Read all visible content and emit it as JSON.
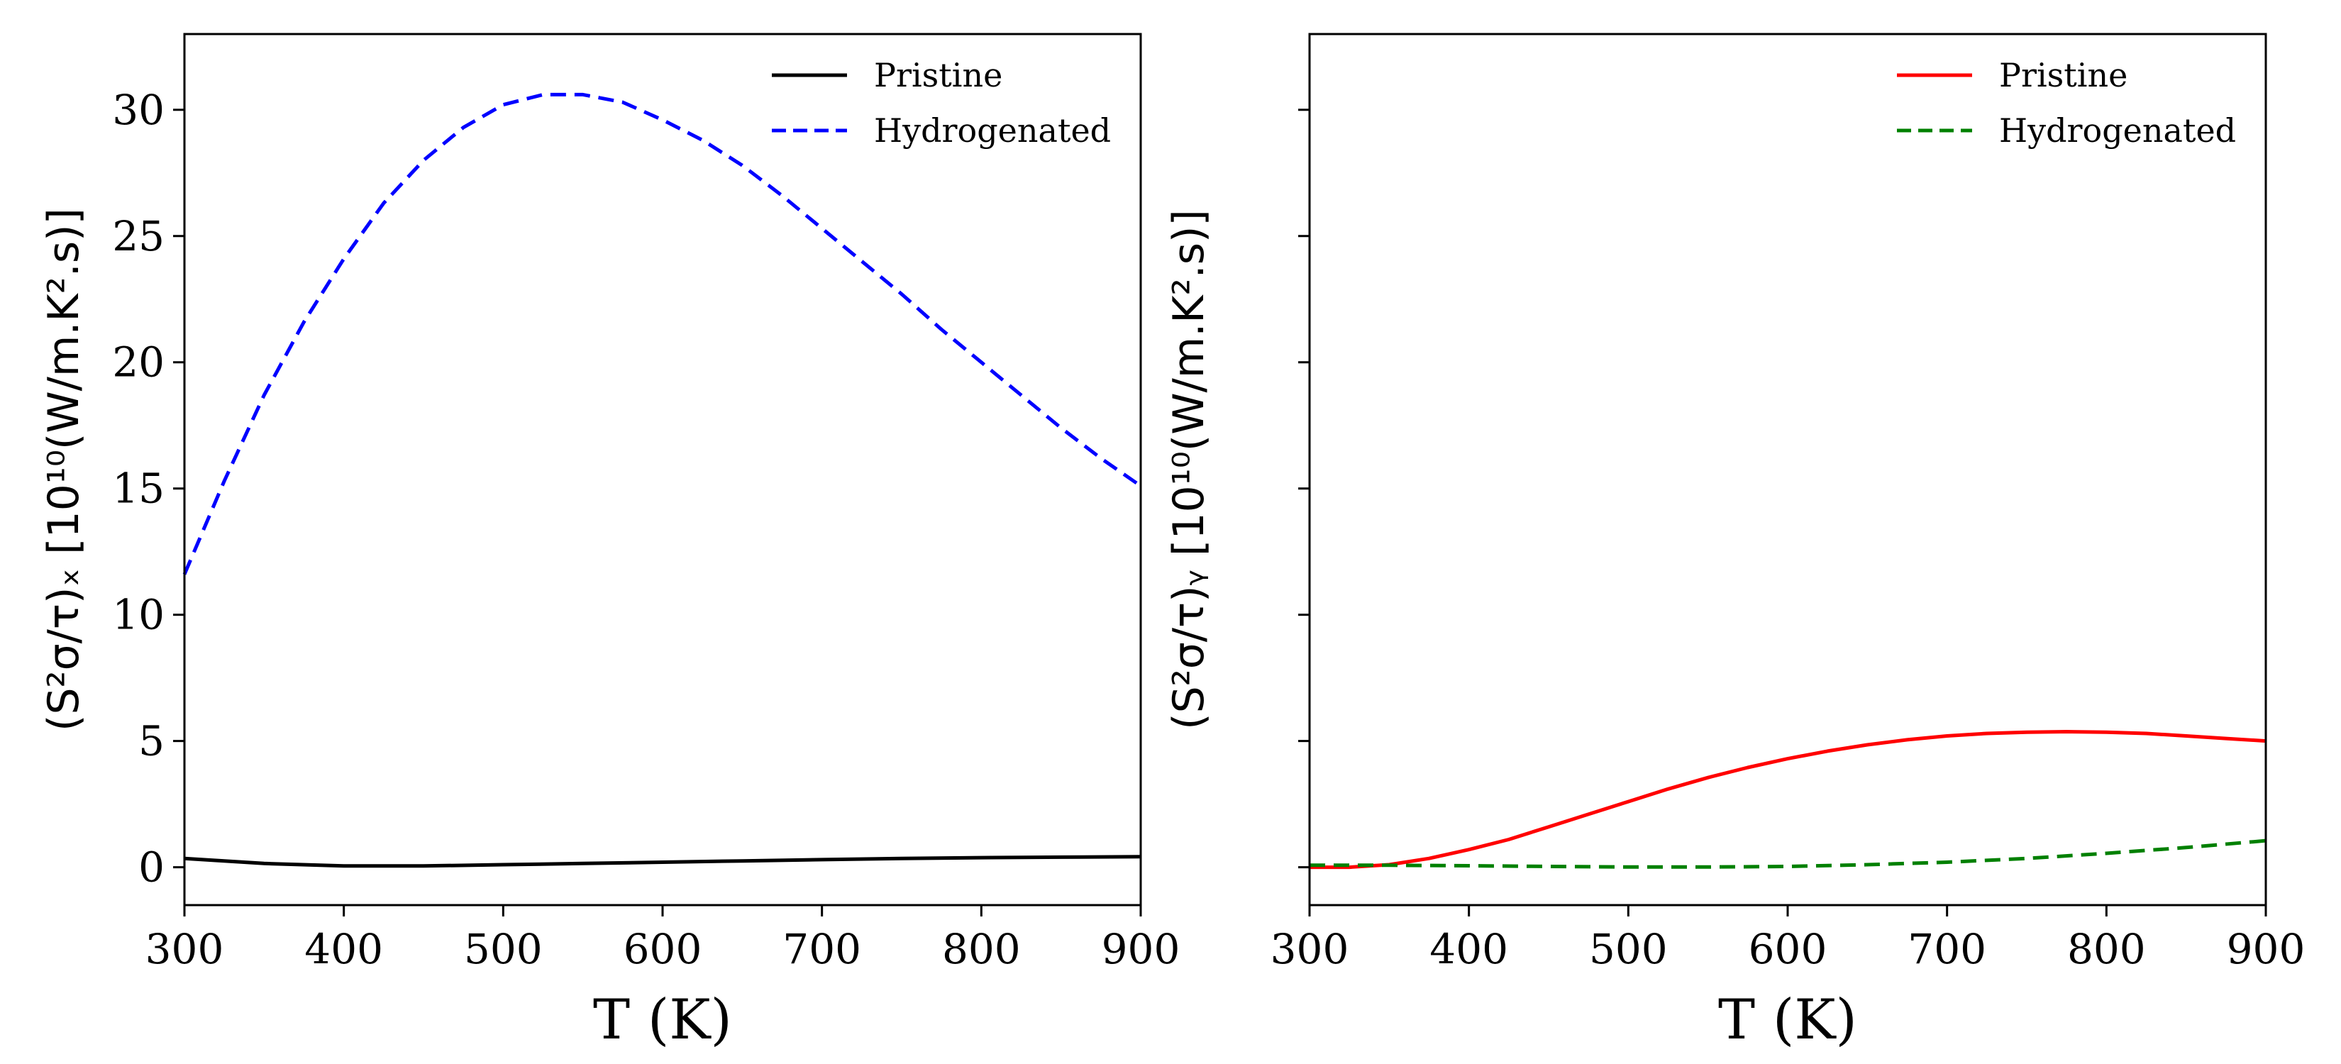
{
  "chart_data": [
    {
      "type": "line",
      "panel": "left",
      "xlabel": "T (K)",
      "ylabel": "(S²σ/τ)ₓ   [10¹⁰(W/m.K².s)]",
      "xlim": [
        300,
        900
      ],
      "ylim": [
        -1.5,
        33
      ],
      "xticks": [
        300,
        400,
        500,
        600,
        700,
        800,
        900
      ],
      "xtick_labels": [
        "300",
        "400",
        "500",
        "600",
        "700",
        "800",
        "900"
      ],
      "yticks": [
        0,
        5,
        10,
        15,
        20,
        25,
        30
      ],
      "ytick_labels": [
        "0",
        "5",
        "10",
        "15",
        "20",
        "25",
        "30"
      ],
      "legend_position": "top-right",
      "grid": false,
      "series": [
        {
          "name": "Pristine",
          "color": "#000000",
          "dash": "solid",
          "x": [
            300,
            350,
            400,
            450,
            500,
            550,
            600,
            650,
            700,
            750,
            800,
            850,
            900
          ],
          "y": [
            0.35,
            0.15,
            0.05,
            0.05,
            0.1,
            0.15,
            0.2,
            0.25,
            0.3,
            0.35,
            0.38,
            0.4,
            0.42
          ]
        },
        {
          "name": "Hydrogenated",
          "color": "#0000ff",
          "dash": "dashed",
          "x": [
            300,
            325,
            350,
            375,
            400,
            425,
            450,
            475,
            500,
            525,
            550,
            575,
            600,
            625,
            650,
            675,
            700,
            725,
            750,
            775,
            800,
            825,
            850,
            875,
            900
          ],
          "y": [
            11.6,
            15.3,
            18.7,
            21.6,
            24.1,
            26.3,
            28.0,
            29.3,
            30.2,
            30.6,
            30.6,
            30.3,
            29.6,
            28.8,
            27.8,
            26.6,
            25.3,
            24.0,
            22.7,
            21.3,
            20.0,
            18.7,
            17.4,
            16.2,
            15.1
          ]
        }
      ]
    },
    {
      "type": "line",
      "panel": "right",
      "xlabel": "T (K)",
      "ylabel": "(S²σ/τ)ᵧ   [10¹⁰(W/m.K².s)]",
      "xlim": [
        300,
        900
      ],
      "ylim": [
        -1.5,
        33
      ],
      "xticks": [
        300,
        400,
        500,
        600,
        700,
        800,
        900
      ],
      "xtick_labels": [
        "300",
        "400",
        "500",
        "600",
        "700",
        "800",
        "900"
      ],
      "yticks": [
        0,
        5,
        10,
        15,
        20,
        25,
        30
      ],
      "ytick_labels": [],
      "legend_position": "top-right",
      "grid": false,
      "series": [
        {
          "name": "Pristine",
          "color": "#ff0000",
          "dash": "solid",
          "x": [
            300,
            325,
            350,
            375,
            400,
            425,
            450,
            475,
            500,
            525,
            550,
            575,
            600,
            625,
            650,
            675,
            700,
            725,
            750,
            775,
            800,
            825,
            850,
            875,
            900
          ],
          "y": [
            0.0,
            0.0,
            0.1,
            0.35,
            0.7,
            1.1,
            1.6,
            2.1,
            2.6,
            3.1,
            3.55,
            3.95,
            4.3,
            4.6,
            4.85,
            5.05,
            5.2,
            5.3,
            5.35,
            5.37,
            5.35,
            5.3,
            5.2,
            5.1,
            5.0
          ]
        },
        {
          "name": "Hydrogenated",
          "color": "#008000",
          "dash": "dashed",
          "x": [
            300,
            350,
            400,
            450,
            500,
            550,
            600,
            650,
            700,
            750,
            800,
            850,
            900
          ],
          "y": [
            0.08,
            0.08,
            0.06,
            0.03,
            0.01,
            0.01,
            0.03,
            0.1,
            0.2,
            0.35,
            0.55,
            0.78,
            1.05
          ]
        }
      ]
    }
  ]
}
